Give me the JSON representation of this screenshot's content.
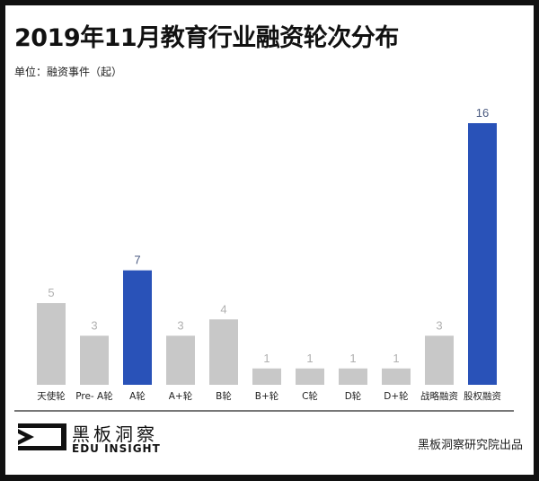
{
  "chart_data": {
    "type": "bar",
    "title": "2019年11月教育行业融资轮次分布",
    "subtitle": "单位：融资事件（起）",
    "categories": [
      "天使轮",
      "Pre- A轮",
      "A轮",
      "A+轮",
      "B轮",
      "B+轮",
      "C轮",
      "D轮",
      "D+轮",
      "战略融资",
      "股权融资"
    ],
    "values": [
      5,
      3,
      7,
      3,
      4,
      1,
      1,
      1,
      1,
      3,
      16
    ],
    "highlighted": [
      "A轮",
      "股权融资"
    ],
    "ylim": [
      0,
      16
    ],
    "grid": false,
    "colors": {
      "bar": "#c8c8c8",
      "highlight": "#2952b8",
      "label": "#b0b0b0",
      "highlight_label": "#4a5a80"
    }
  },
  "footer": {
    "logo_cn": "黑板洞察",
    "logo_en": "EDU INSIGHT",
    "credit": "黑板洞察研究院出品"
  }
}
